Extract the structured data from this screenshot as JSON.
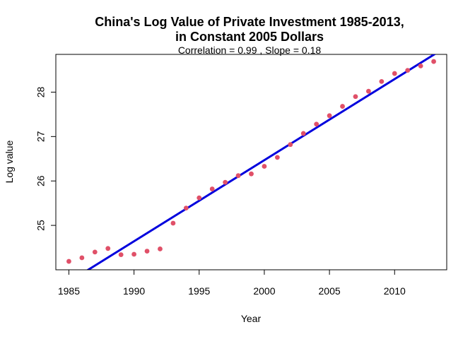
{
  "chart_data": {
    "type": "scatter",
    "title_lines": [
      "China's Log Value of Private Investment 1985-2013,",
      "in Constant 2005 Dollars"
    ],
    "subtitle": "Correlation = 0.99 , Slope = 0.18",
    "xlabel": "Year",
    "ylabel": "Log value",
    "xlim": [
      1984,
      2014
    ],
    "ylim": [
      24.0,
      28.85
    ],
    "x_ticks": [
      1985,
      1990,
      1995,
      2000,
      2005,
      2010
    ],
    "y_ticks": [
      25,
      26,
      27,
      28
    ],
    "grid": false,
    "points": {
      "x": [
        1985,
        1986,
        1987,
        1988,
        1989,
        1990,
        1991,
        1992,
        1993,
        1994,
        1995,
        1996,
        1997,
        1998,
        1999,
        2000,
        2001,
        2002,
        2003,
        2004,
        2005,
        2006,
        2007,
        2008,
        2009,
        2010,
        2011,
        2012,
        2013
      ],
      "y": [
        24.19,
        24.27,
        24.4,
        24.48,
        24.34,
        24.35,
        24.42,
        24.47,
        25.05,
        25.39,
        25.62,
        25.82,
        25.97,
        26.12,
        26.16,
        26.33,
        26.53,
        26.82,
        27.07,
        27.28,
        27.47,
        27.68,
        27.9,
        28.02,
        28.24,
        28.42,
        28.49,
        28.59,
        28.69
      ]
    },
    "fit_line": {
      "x": [
        1986.1,
        2013.1
      ],
      "y": [
        23.93,
        28.86
      ]
    },
    "point_color": "#e05068",
    "line_color": "#0000dd"
  }
}
